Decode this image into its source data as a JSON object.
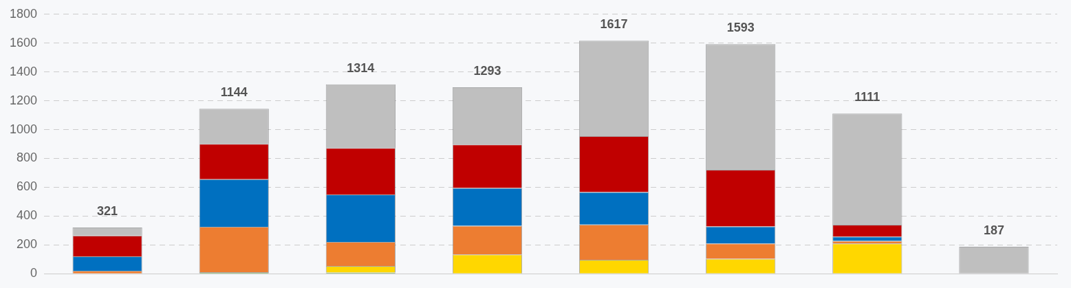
{
  "chart_data": {
    "type": "bar",
    "stacked": true,
    "categories": [
      null,
      null,
      null,
      null,
      null,
      null,
      null,
      null
    ],
    "series": [
      {
        "color": "#70ad47",
        "values": [
          null,
          10,
          8,
          null,
          null,
          null,
          null,
          null
        ]
      },
      {
        "color": "#ffd700",
        "values": [
          null,
          null,
          45,
          133,
          96,
          103,
          210,
          null
        ]
      },
      {
        "color": "#ed7d31",
        "values": [
          20,
          315,
          167,
          200,
          245,
          107,
          17,
          null
        ]
      },
      {
        "color": "#0070c0",
        "values": [
          100,
          330,
          330,
          262,
          225,
          118,
          30,
          null
        ]
      },
      {
        "color": "#c00000",
        "values": [
          145,
          246,
          322,
          301,
          389,
          393,
          83,
          null
        ]
      },
      {
        "color": "#bfbfbf",
        "values": [
          56,
          243,
          442,
          397,
          662,
          872,
          771,
          187
        ]
      }
    ],
    "totals": [
      "321",
      "1144",
      "1314",
      "1293",
      "1617",
      "1593",
      "1111",
      "187"
    ],
    "ylim": [
      0,
      1800
    ],
    "yticks": [
      0,
      200,
      400,
      600,
      800,
      1000,
      1200,
      1400,
      1600,
      1800
    ],
    "grid": "y",
    "tick_labels": "y",
    "legend": false
  }
}
